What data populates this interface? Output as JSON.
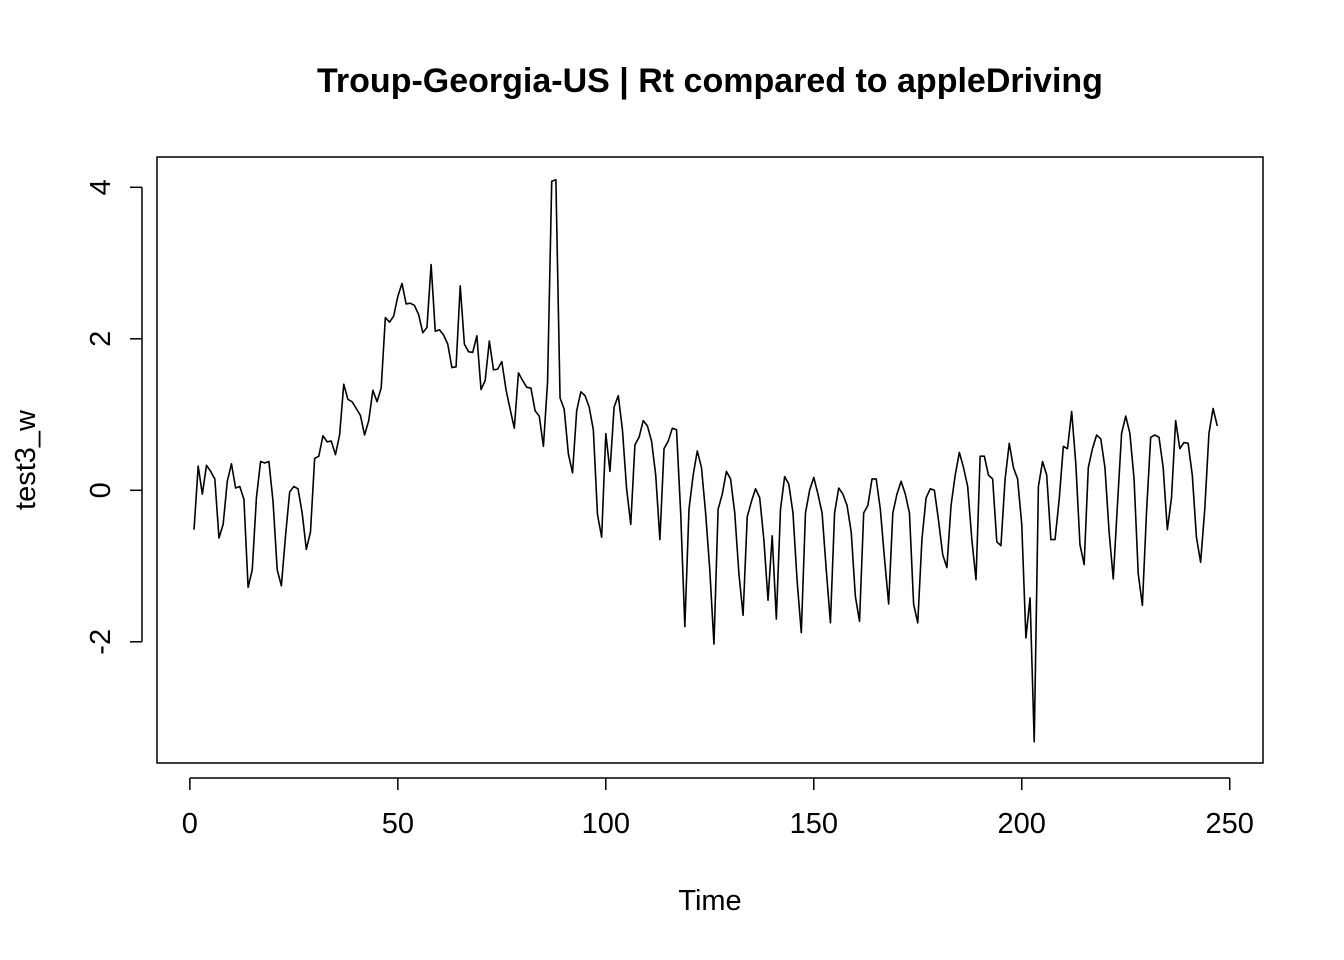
{
  "chart_data": {
    "type": "line",
    "title": "Troup-Georgia-US | Rt compared to appleDriving",
    "xlabel": "Time",
    "ylabel": "test3_w",
    "xlim": [
      -7.9,
      258
    ],
    "ylim": [
      -3.6,
      4.4
    ],
    "x_ticks": [
      0,
      50,
      100,
      150,
      200,
      250
    ],
    "y_ticks": [
      -2,
      0,
      2,
      4
    ],
    "grid": false,
    "legend": "none",
    "line_color": "#000000",
    "series": [
      {
        "x_start": 1,
        "values": [
          -0.52,
          0.32,
          -0.05,
          0.33,
          0.25,
          0.15,
          -0.63,
          -0.45,
          0.12,
          0.35,
          0.03,
          0.05,
          -0.12,
          -1.28,
          -1.05,
          -0.1,
          0.38,
          0.36,
          0.38,
          -0.15,
          -1.05,
          -1.26,
          -0.6,
          -0.02,
          0.05,
          0.02,
          -0.3,
          -0.78,
          -0.55,
          0.42,
          0.45,
          0.72,
          0.64,
          0.65,
          0.47,
          0.73,
          1.4,
          1.2,
          1.17,
          1.08,
          0.99,
          0.73,
          0.92,
          1.32,
          1.17,
          1.35,
          2.28,
          2.22,
          2.3,
          2.56,
          2.73,
          2.46,
          2.47,
          2.44,
          2.32,
          2.08,
          2.15,
          2.98,
          2.1,
          2.12,
          2.05,
          1.93,
          1.62,
          1.63,
          2.7,
          1.93,
          1.83,
          1.82,
          2.04,
          1.33,
          1.45,
          1.97,
          1.59,
          1.6,
          1.7,
          1.33,
          1.07,
          0.82,
          1.55,
          1.45,
          1.36,
          1.35,
          1.05,
          0.98,
          0.58,
          1.43,
          4.08,
          4.1,
          1.22,
          1.07,
          0.48,
          0.23,
          1.05,
          1.3,
          1.25,
          1.1,
          0.8,
          -0.32,
          -0.62,
          0.75,
          0.25,
          1.1,
          1.25,
          0.8,
          0.02,
          -0.45,
          0.6,
          0.7,
          0.92,
          0.85,
          0.65,
          0.2,
          -0.65,
          0.55,
          0.65,
          0.82,
          0.8,
          -0.3,
          -1.8,
          -0.25,
          0.2,
          0.52,
          0.3,
          -0.3,
          -1.05,
          -2.03,
          -0.25,
          -0.05,
          0.25,
          0.15,
          -0.3,
          -1.1,
          -1.65,
          -0.35,
          -0.15,
          0.02,
          -0.1,
          -0.65,
          -1.45,
          -0.6,
          -1.7,
          -0.25,
          0.18,
          0.08,
          -0.3,
          -1.2,
          -1.88,
          -0.3,
          0.0,
          0.17,
          -0.05,
          -0.3,
          -1.05,
          -1.75,
          -0.3,
          0.03,
          -0.05,
          -0.2,
          -0.55,
          -1.4,
          -1.73,
          -0.3,
          -0.2,
          0.15,
          0.15,
          -0.25,
          -0.9,
          -1.5,
          -0.3,
          -0.05,
          0.12,
          -0.05,
          -0.3,
          -1.5,
          -1.75,
          -0.65,
          -0.1,
          0.02,
          0.0,
          -0.4,
          -0.85,
          -1.02,
          -0.2,
          0.2,
          0.5,
          0.3,
          0.05,
          -0.65,
          -1.18,
          0.45,
          0.45,
          0.2,
          0.15,
          -0.68,
          -0.73,
          0.15,
          0.62,
          0.3,
          0.15,
          -0.45,
          -1.95,
          -1.42,
          -3.32,
          0.05,
          0.38,
          0.2,
          -0.65,
          -0.65,
          -0.12,
          0.58,
          0.55,
          1.04,
          0.35,
          -0.72,
          -0.98,
          0.3,
          0.55,
          0.73,
          0.68,
          0.3,
          -0.55,
          -1.17,
          -0.2,
          0.75,
          0.98,
          0.75,
          0.15,
          -1.1,
          -1.52,
          -0.28,
          0.7,
          0.73,
          0.7,
          0.3,
          -0.52,
          -0.1,
          0.92,
          0.55,
          0.63,
          0.62,
          0.2,
          -0.62,
          -0.95,
          -0.25,
          0.75,
          1.08,
          0.85
        ]
      }
    ]
  }
}
